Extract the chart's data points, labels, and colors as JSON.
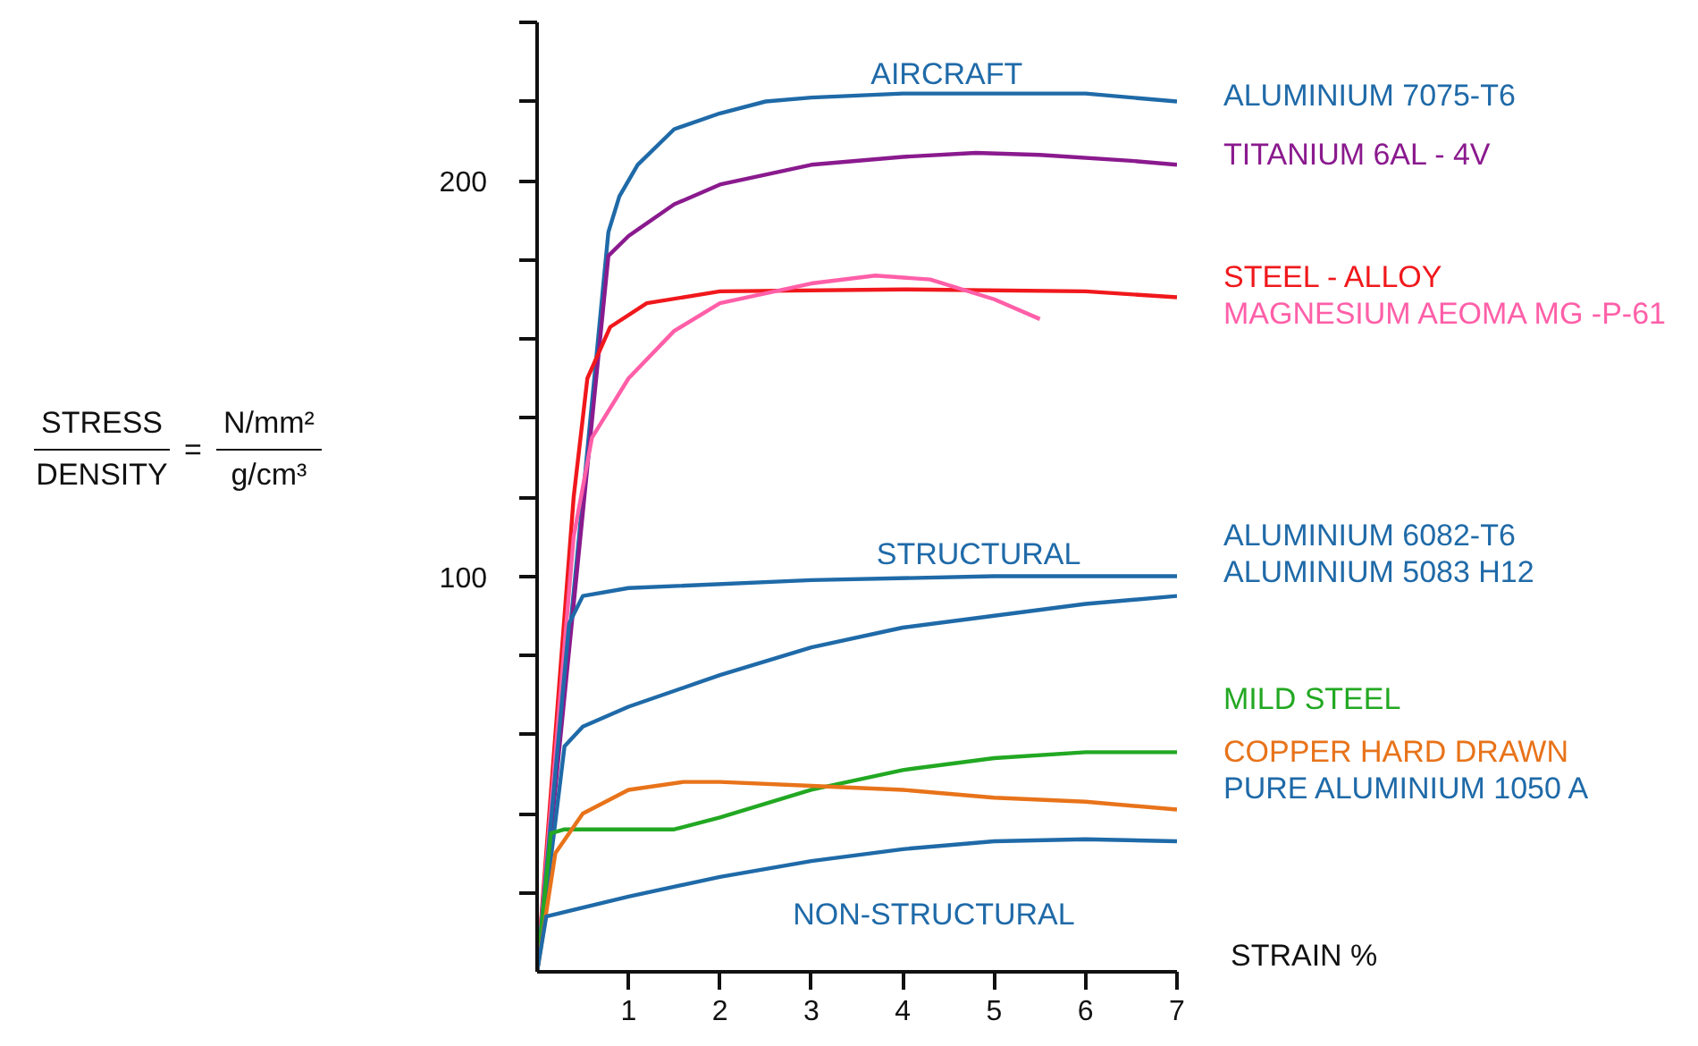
{
  "chart_data": {
    "type": "line",
    "xlabel": "STRAIN %",
    "ylabel": "STRESS DENSITY = N/mm² g/cm³",
    "xlim": [
      0,
      7
    ],
    "xticks": [
      1,
      2,
      3,
      4,
      5,
      6,
      7
    ],
    "ylim": [
      0,
      240
    ],
    "yticks": [
      {
        "value": 20,
        "label": null
      },
      {
        "value": 40,
        "label": null
      },
      {
        "value": 60,
        "label": null
      },
      {
        "value": 80,
        "label": null
      },
      100,
      {
        "value": 120,
        "label": null
      },
      {
        "value": 140,
        "label": null
      },
      {
        "value": 160,
        "label": null
      },
      {
        "value": 180,
        "label": null
      },
      200,
      {
        "value": 220,
        "label": null
      },
      {
        "value": 240,
        "label": null
      }
    ],
    "grid": false,
    "legend": false,
    "marker": "none",
    "line_style": "solid",
    "annotations": [
      "AIRCRAFT",
      "STRUCTURAL",
      "NON-STRUCTURAL"
    ],
    "series": [
      {
        "name": "ALUMINIUM 7075-T6",
        "color": "#1f6aa8",
        "x": [
          0,
          0.78,
          0.9,
          1.1,
          1.5,
          2,
          2.5,
          3,
          4,
          5,
          6,
          7
        ],
        "values": [
          0,
          187,
          196,
          204,
          213,
          217,
          220,
          221,
          222,
          222,
          222,
          220
        ]
      },
      {
        "name": "TITANIUM 6AL - 4V",
        "color": "#8a1a8e",
        "x": [
          0,
          0.78,
          1,
          1.5,
          2,
          3,
          4,
          4.8,
          5.5,
          6.5,
          7
        ],
        "values": [
          0,
          181,
          186,
          194,
          199,
          204,
          206,
          207,
          206.5,
          205,
          204
        ]
      },
      {
        "name": "STEEL - ALLOY",
        "color": "#f0181c",
        "x": [
          0,
          0.4,
          0.55,
          0.8,
          1.2,
          2,
          4,
          6,
          7
        ],
        "values": [
          0,
          120,
          150,
          163,
          169,
          172,
          172.5,
          172,
          170.5
        ]
      },
      {
        "name": "MAGNESIUM AEOMA MG -P-61",
        "color": "#ff5fa8",
        "x": [
          0,
          0.4,
          0.6,
          1,
          1.5,
          2,
          3,
          3.7,
          4.3,
          5,
          5.5
        ],
        "values": [
          0,
          110,
          135,
          150,
          162,
          169,
          174,
          176,
          175,
          170,
          165
        ]
      },
      {
        "name": "ALUMINIUM 6082-T6",
        "color": "#1f6aa8",
        "x": [
          0,
          0.35,
          0.5,
          1,
          3,
          5,
          7
        ],
        "values": [
          0,
          88,
          95,
          97,
          99,
          100,
          100
        ]
      },
      {
        "name": "ALUMINIUM 5083 H12",
        "color": "#1f6aa8",
        "x": [
          0,
          0.3,
          0.5,
          1,
          2,
          3,
          4,
          5,
          6,
          7
        ],
        "values": [
          0,
          57,
          62,
          67,
          75,
          82,
          87,
          90,
          93,
          95
        ]
      },
      {
        "name": "MILD STEEL",
        "color": "#22a822",
        "x": [
          0,
          0.15,
          0.3,
          1,
          1.5,
          2,
          3,
          4,
          5,
          6,
          7
        ],
        "values": [
          0,
          35,
          36,
          36,
          36,
          39,
          46,
          51,
          54,
          55.5,
          55.5
        ]
      },
      {
        "name": "COPPER HARD DRAWN",
        "color": "#e8731a",
        "x": [
          0,
          0.2,
          0.5,
          1,
          1.6,
          2,
          3,
          4,
          5,
          6,
          7
        ],
        "values": [
          0,
          30,
          40,
          46,
          48,
          48,
          47,
          46,
          44,
          43,
          41
        ]
      },
      {
        "name": "PURE ALUMINIUM 1050 A",
        "color": "#1f6aa8",
        "x": [
          0,
          0.1,
          1,
          2,
          3,
          4,
          5,
          6,
          7
        ],
        "values": [
          0,
          14,
          19,
          24,
          28,
          31,
          33,
          33.5,
          33
        ]
      }
    ]
  }
}
